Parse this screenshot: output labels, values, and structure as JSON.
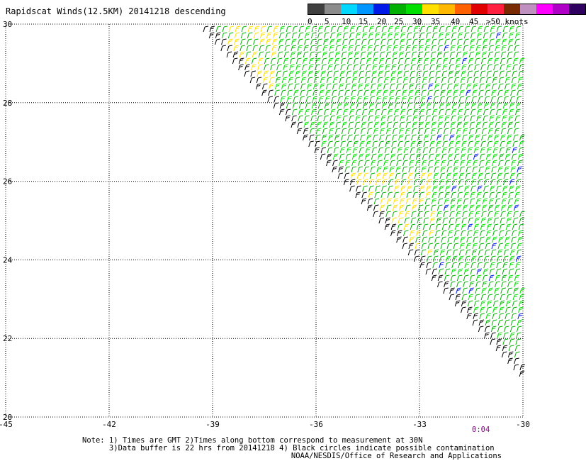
{
  "title": "Rapidscat Winds(12.5KM) 20141218 descending",
  "legend": {
    "colors": [
      "#404040",
      "#8c8c8c",
      "#00d8ff",
      "#0096ff",
      "#0018e8",
      "#00b000",
      "#00e000",
      "#ffe000",
      "#ffb800",
      "#ff6000",
      "#e00000",
      "#ff2040",
      "#7a2a00",
      "#c090c0",
      "#ff00ff",
      "#b000c8",
      "#300060"
    ],
    "labels": [
      "0",
      "5",
      "10",
      "15",
      "20",
      "25",
      "30",
      "35",
      "40",
      "45",
      ">50 knots"
    ]
  },
  "axes": {
    "x_ticks": [
      "-45",
      "-42",
      "-39",
      "-36",
      "-33",
      "-30"
    ],
    "y_ticks": [
      "30",
      "28",
      "26",
      "24",
      "22",
      "20"
    ],
    "xlim": [
      -45,
      -30
    ],
    "ylim": [
      20,
      30
    ],
    "grid": true
  },
  "swath": {
    "edge_start": {
      "lon": -39.3,
      "lat": 30.0
    },
    "edge_end": {
      "lon": -30.0,
      "lat": 21.1
    }
  },
  "pass_time": "0:04",
  "notes": [
    "Note: 1) Times are GMT 2)Times along bottom correspond to measurement at 30N",
    "      3)Data buffer is 22 hrs from 20141218 4) Black circles indicate possible contamination"
  ],
  "credit": "NOAA/NESDIS/Office of Research and Applications"
}
